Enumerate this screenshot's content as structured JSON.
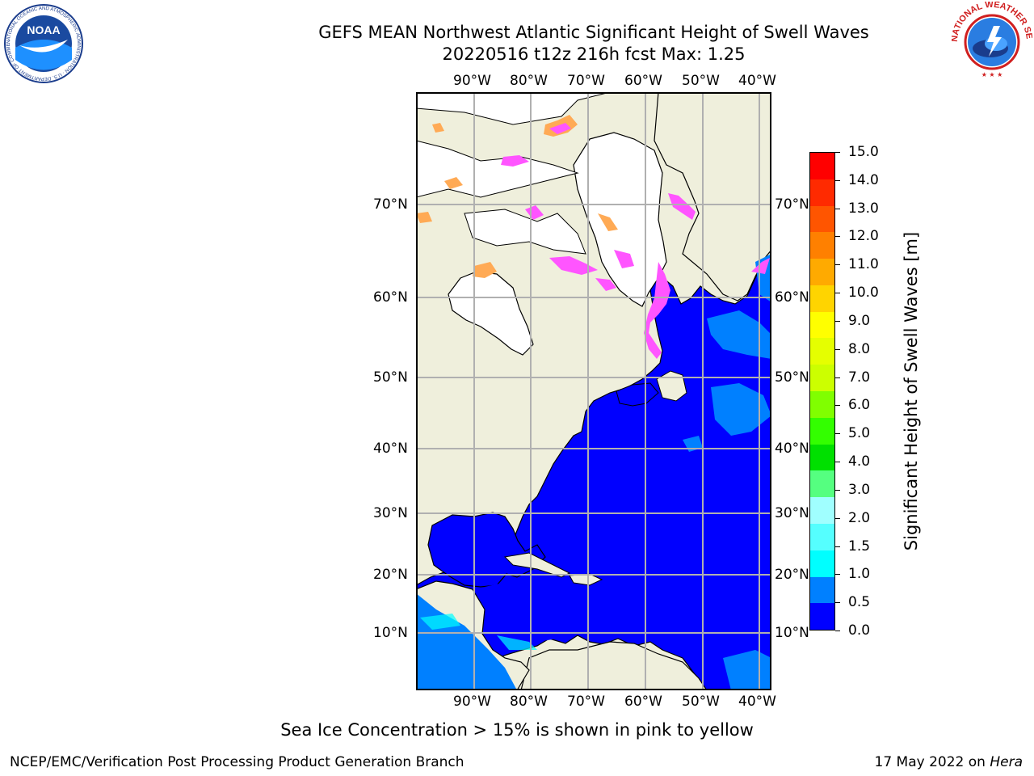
{
  "title_line1": "GEFS MEAN Northwest Atlantic Significant Height of Swell Waves",
  "title_line2": "20220516 t12z 216h fcst   Max: 1.25",
  "lon_ticks": [
    "90°W",
    "80°W",
    "70°W",
    "60°W",
    "50°W",
    "40°W"
  ],
  "lat_ticks": [
    "70°N",
    "60°N",
    "50°N",
    "40°N",
    "30°N",
    "20°N",
    "10°N"
  ],
  "colorbar": {
    "label": "Significant Height of Swell Waves [m]",
    "tick_labels": [
      "15.0",
      "14.0",
      "13.0",
      "12.0",
      "11.0",
      "10.0",
      "9.0",
      "8.0",
      "7.0",
      "6.0",
      "5.0",
      "4.0",
      "3.0",
      "2.0",
      "1.5",
      "1.0",
      "0.5",
      "0.0"
    ],
    "colors": [
      "#ff0000",
      "#ff2a00",
      "#ff5500",
      "#ff8000",
      "#ffaa00",
      "#ffd400",
      "#ffff00",
      "#e5ff00",
      "#ccff00",
      "#80ff00",
      "#33ff00",
      "#00e000",
      "#55ff80",
      "#a0ffff",
      "#55ffff",
      "#00ffff",
      "#0080ff",
      "#0000ff"
    ]
  },
  "caption": "Sea Ice Concentration > 15% is shown in pink to yellow",
  "footer_left": "NCEP/EMC/Verification Post Processing Product Generation Branch",
  "footer_right_date": "17 May 2022 on",
  "footer_right_host": "Hera",
  "logos": {
    "noaa_text": "NOAA",
    "noaa_ring": "NATIONAL OCEANIC AND ATMOSPHERIC ADMINISTRATION · U.S. DEPARTMENT OF COMMERCE",
    "nws_ring": "NATIONAL WEATHER SERVICE"
  },
  "colors": {
    "land": "#efefdc",
    "ocean_low": "#0000ff",
    "ocean_mid": "#0080ff",
    "ice_pink": "#ff55ff",
    "ice_orange": "#ffaa55",
    "grid": "#b0b0b0"
  }
}
